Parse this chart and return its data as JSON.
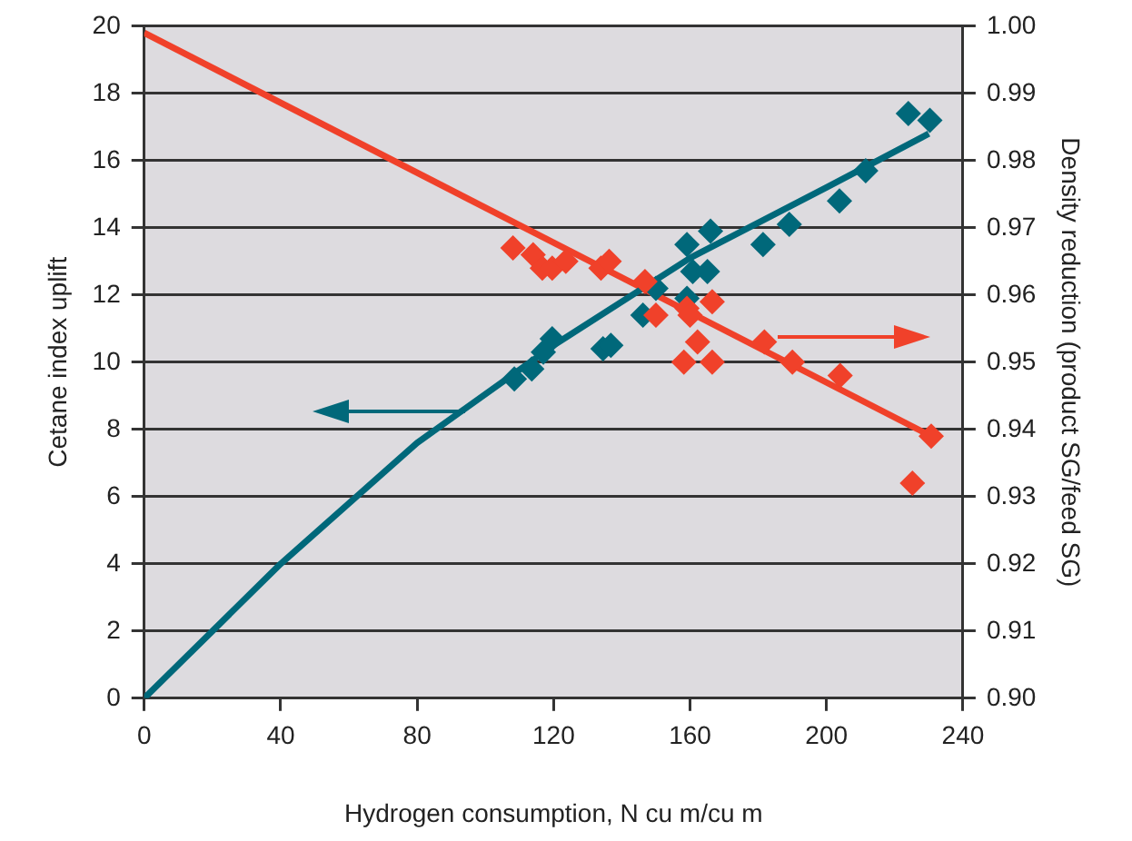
{
  "chart_data": {
    "type": "scatter",
    "xlabel": "Hydrogen consumption, N cu m/cu m",
    "ylabel": "Cetane index uplift",
    "y2label": "Density reduction (product SG/feed SG)",
    "xlim": [
      0,
      240
    ],
    "xticks": [
      0,
      40,
      80,
      120,
      160,
      200,
      240
    ],
    "ylim": [
      0,
      20
    ],
    "yticks": [
      0,
      2,
      4,
      6,
      8,
      10,
      12,
      14,
      16,
      18,
      20
    ],
    "y2lim": [
      0.9,
      1.0
    ],
    "y2ticks": [
      {
        "value": 0.9,
        "label": "0.90"
      },
      0.91,
      0.92,
      0.93,
      0.94,
      0.95,
      0.96,
      0.97,
      0.98,
      0.99,
      {
        "value": 1.0,
        "label": "1.00"
      }
    ],
    "grid": "y",
    "legend": false,
    "series": [
      {
        "marker": "diamond",
        "color": "#00687a",
        "x": [
          108.5,
          113.6,
          117,
          119.6,
          134.5,
          136.8,
          146.2,
          150,
          159.1,
          159.1,
          160.8,
          166,
          165.1,
          181.4,
          189.1,
          203.8,
          211.5,
          224,
          230.3
        ],
        "values": [
          9.5,
          9.8,
          10.3,
          10.7,
          10.4,
          10.5,
          11.4,
          12.2,
          13.5,
          11.9,
          12.7,
          13.9,
          12.7,
          13.5,
          14.1,
          14.8,
          15.7,
          17.4,
          17.2
        ]
      },
      {
        "type": "line",
        "marker": "none",
        "color": "#00687a",
        "x": [
          0,
          40,
          80,
          120,
          160,
          200,
          230
        ],
        "values": [
          0,
          4,
          7.6,
          10.5,
          13.1,
          15.2,
          16.8
        ]
      },
      {
        "marker": "diamond",
        "axis": "y2",
        "color": "#f0412a",
        "x": [
          108.1,
          114,
          116.7,
          119.6,
          123.6,
          133.9,
          136.3,
          146.8,
          150,
          159.1,
          160,
          166.5,
          162.2,
          158.2,
          166.5,
          181.8,
          190,
          204,
          230.7,
          225.2
        ],
        "values": [
          0.967,
          0.966,
          0.964,
          0.964,
          0.965,
          0.964,
          0.965,
          0.962,
          0.957,
          0.958,
          0.957,
          0.959,
          0.953,
          0.95,
          0.95,
          0.953,
          0.95,
          0.948,
          0.939,
          0.932
        ]
      },
      {
        "type": "line",
        "marker": "none",
        "axis": "y2",
        "color": "#f0412a",
        "x": [
          0,
          230.7
        ],
        "values": [
          0.999,
          0.939
        ]
      }
    ]
  }
}
